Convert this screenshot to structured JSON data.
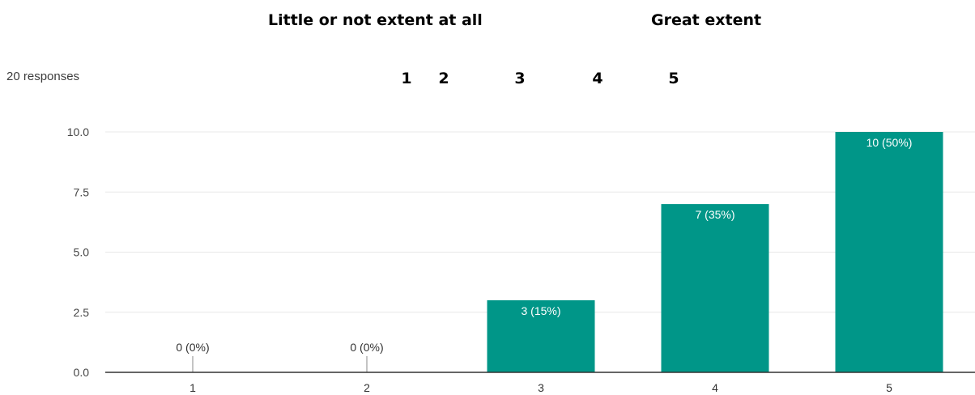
{
  "header": {
    "scale_left": "Little or not extent at all",
    "scale_right": "Great extent",
    "scale_numbers": [
      "1",
      "2",
      "3",
      "4",
      "5"
    ]
  },
  "responses_label": "20 responses",
  "colors": {
    "bar": "#009688",
    "grid": "#e8e8e8",
    "axis": "#333333"
  },
  "chart_data": {
    "type": "bar",
    "categories": [
      "1",
      "2",
      "3",
      "4",
      "5"
    ],
    "values": [
      0,
      0,
      3,
      7,
      10
    ],
    "data_labels": [
      "0 (0%)",
      "0 (0%)",
      "3 (15%)",
      "7 (35%)",
      "10 (50%)"
    ],
    "yticks": [
      "0.0",
      "2.5",
      "5.0",
      "7.5",
      "10.0"
    ],
    "ylim": [
      0,
      10
    ],
    "grid": true,
    "title": "",
    "xlabel": "",
    "ylabel": ""
  }
}
